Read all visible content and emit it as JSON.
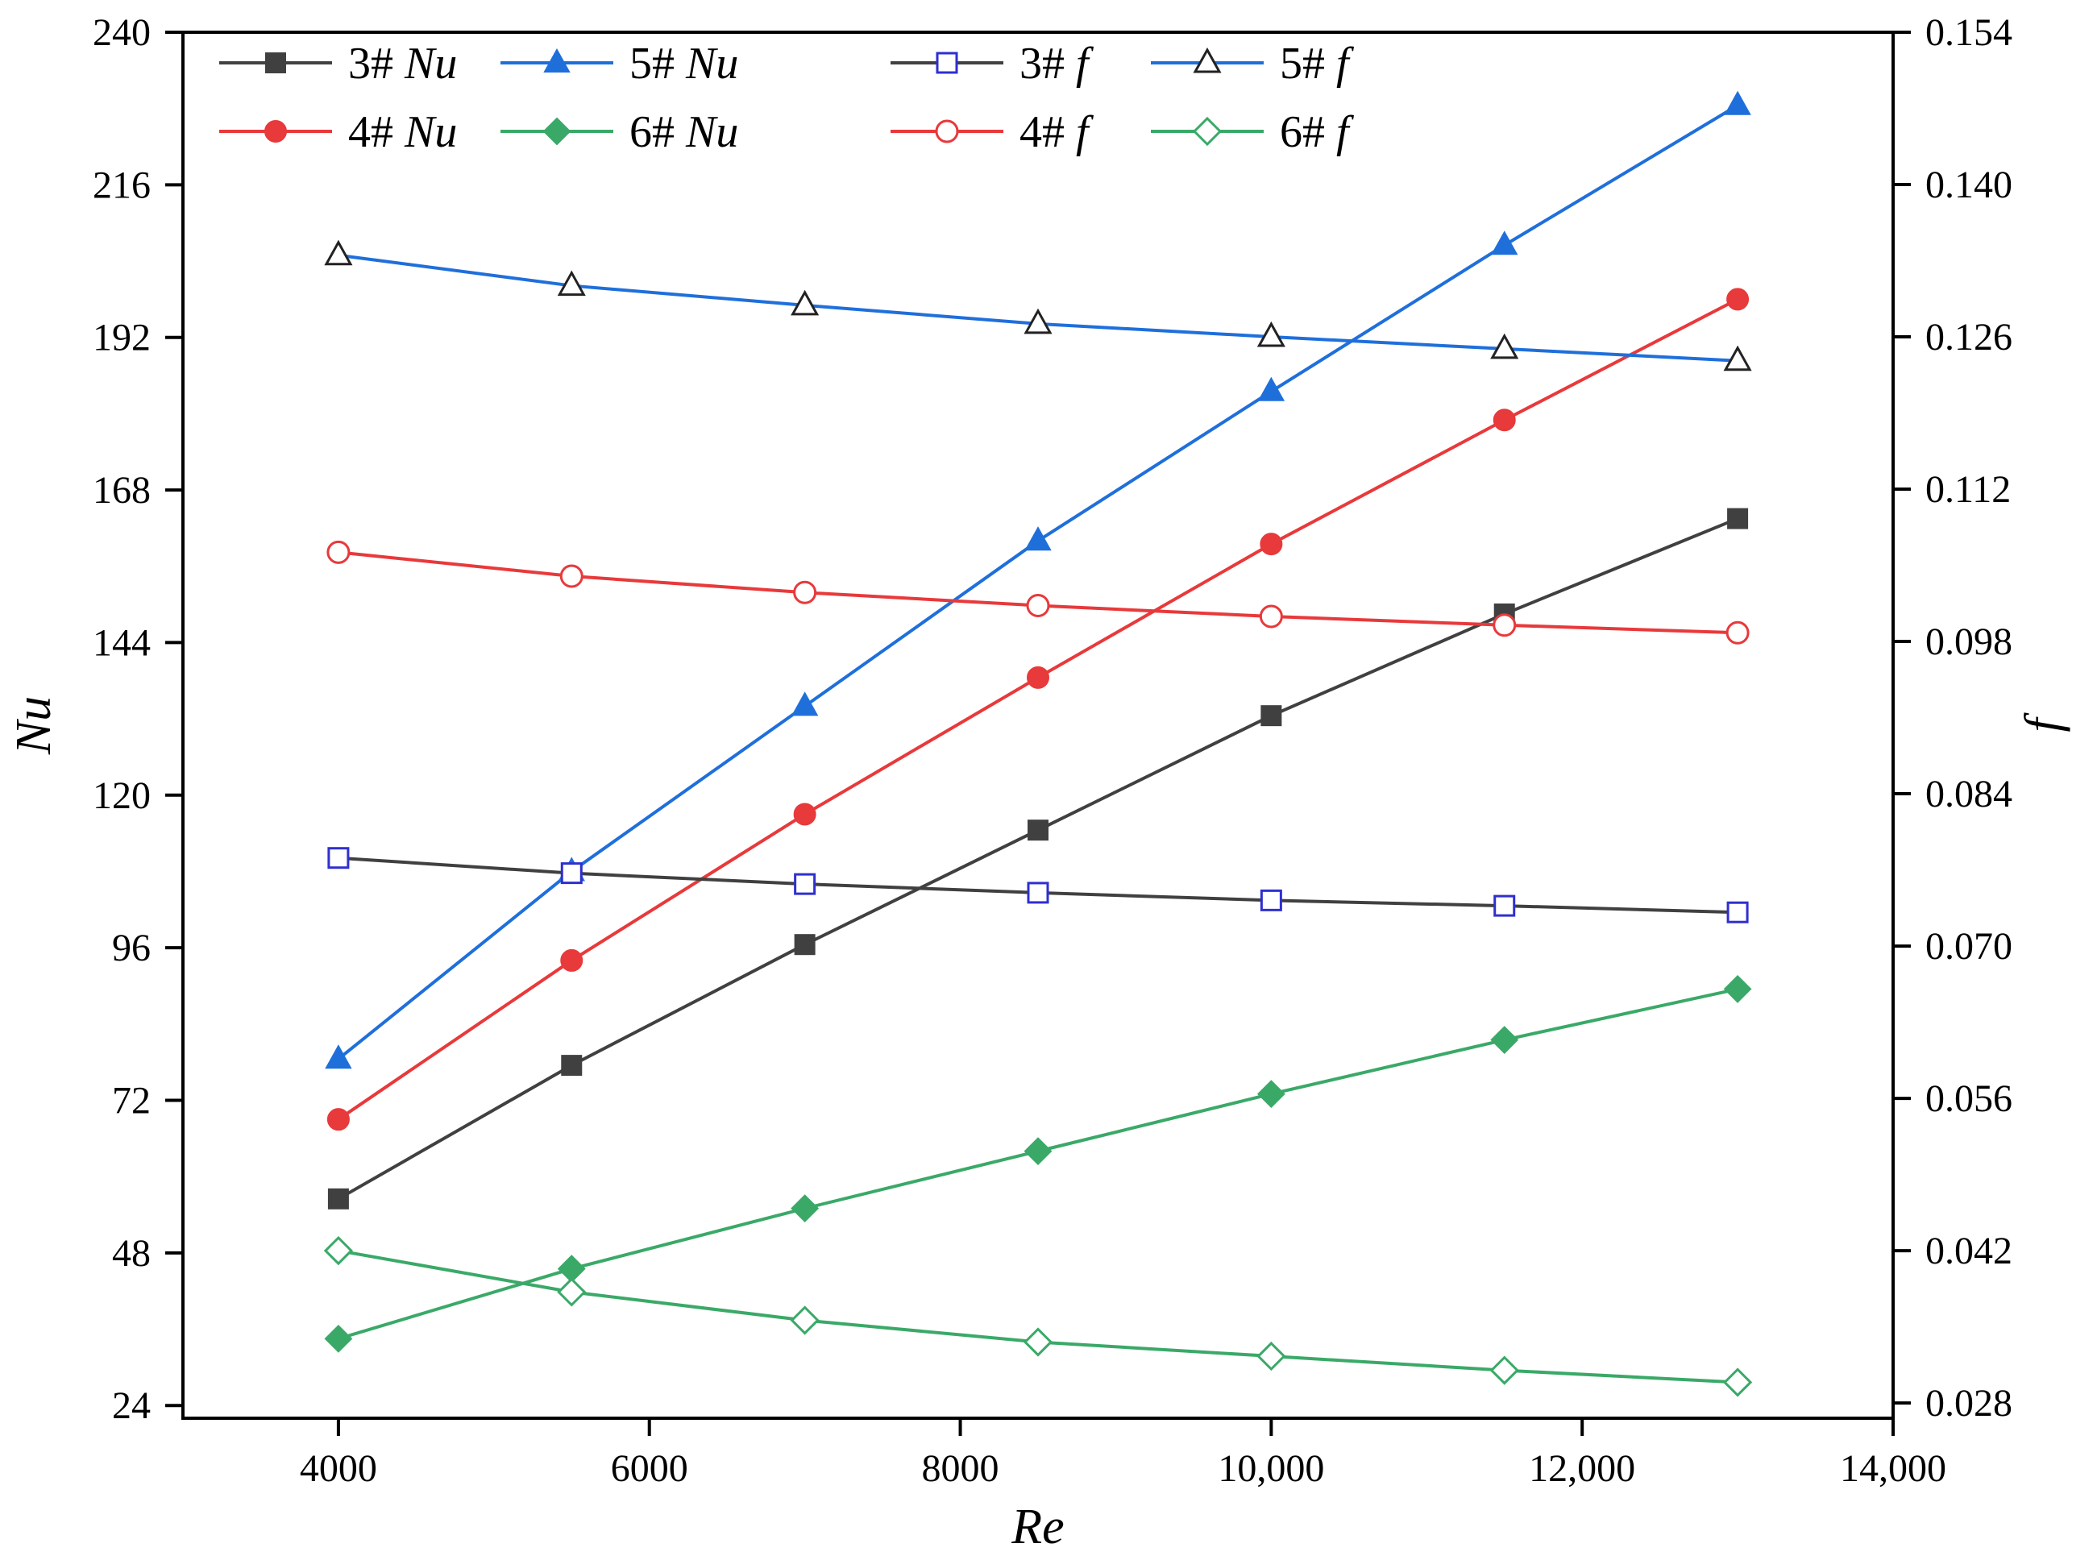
{
  "chart_data": {
    "type": "line",
    "x": [
      4000,
      5500,
      7000,
      8500,
      10000,
      11500,
      13000
    ],
    "xlabel": "Re",
    "ylabel_left": "Nu",
    "ylabel_right": "f",
    "xlim": [
      3000,
      14000
    ],
    "ylim_left": [
      22,
      240
    ],
    "ylim_right": [
      0.0266,
      0.154
    ],
    "x_ticks": [
      4000,
      6000,
      8000,
      10000,
      12000,
      14000
    ],
    "x_tick_labels": [
      "4000",
      "6000",
      "8000",
      "10,000",
      "12,000",
      "14,000"
    ],
    "y_left_ticks": [
      24,
      48,
      72,
      96,
      120,
      144,
      168,
      192,
      216,
      240
    ],
    "y_left_tick_labels": [
      "24",
      "48",
      "72",
      "96",
      "120",
      "144",
      "168",
      "192",
      "216",
      "240"
    ],
    "y_right_ticks": [
      0.028,
      0.042,
      0.056,
      0.07,
      0.084,
      0.098,
      0.112,
      0.126,
      0.14,
      0.154
    ],
    "y_right_tick_labels": [
      "0.028",
      "0.042",
      "0.056",
      "0.070",
      "0.084",
      "0.098",
      "0.112",
      "0.126",
      "0.140",
      "0.154"
    ],
    "grid": false,
    "legend_position": "top",
    "series": [
      {
        "name": "3# Nu",
        "id": "3",
        "sym": "Nu",
        "axis": "left",
        "color": "#404040",
        "marker": "square",
        "filled": true,
        "values": [
          56.5,
          77.5,
          96.5,
          114.5,
          132.5,
          148.5,
          163.5
        ]
      },
      {
        "name": "4# Nu",
        "id": "4",
        "sym": "Nu",
        "axis": "left",
        "color": "#e8393b",
        "marker": "circle",
        "filled": true,
        "values": [
          69,
          94,
          117,
          138.5,
          159.5,
          179,
          198
        ]
      },
      {
        "name": "5# Nu",
        "id": "5",
        "sym": "Nu",
        "axis": "left",
        "color": "#1f6fdb",
        "marker": "triangle",
        "filled": true,
        "values": [
          78.5,
          108,
          134,
          160,
          183.5,
          206.5,
          228.5
        ]
      },
      {
        "name": "6# Nu",
        "id": "6",
        "sym": "Nu",
        "axis": "left",
        "color": "#3aa968",
        "marker": "diamond",
        "filled": true,
        "values": [
          34.5,
          45.5,
          55,
          64,
          73,
          81.5,
          89.5
        ]
      },
      {
        "name": "3# f",
        "id": "3",
        "sym": "f",
        "axis": "right",
        "color": "#404040",
        "markerColor": "#2f2fd0",
        "marker": "square",
        "filled": false,
        "values": [
          0.0781,
          0.0767,
          0.0757,
          0.0749,
          0.0742,
          0.0737,
          0.0731
        ]
      },
      {
        "name": "4# f",
        "id": "4",
        "sym": "f",
        "axis": "right",
        "color": "#e8393b",
        "marker": "circle",
        "filled": false,
        "values": [
          0.1062,
          0.104,
          0.1025,
          0.1013,
          0.1003,
          0.0995,
          0.0988
        ]
      },
      {
        "name": "5# f",
        "id": "5",
        "sym": "f",
        "axis": "right",
        "color": "#1f6fdb",
        "markerColor": "#222222",
        "marker": "triangle",
        "filled": false,
        "values": [
          0.1335,
          0.1307,
          0.1289,
          0.1272,
          0.126,
          0.1249,
          0.1238
        ]
      },
      {
        "name": "6# f",
        "id": "6",
        "sym": "f",
        "axis": "right",
        "color": "#3aa968",
        "marker": "diamond",
        "filled": false,
        "values": [
          0.042,
          0.0382,
          0.0356,
          0.0336,
          0.0323,
          0.031,
          0.0299
        ]
      }
    ]
  }
}
